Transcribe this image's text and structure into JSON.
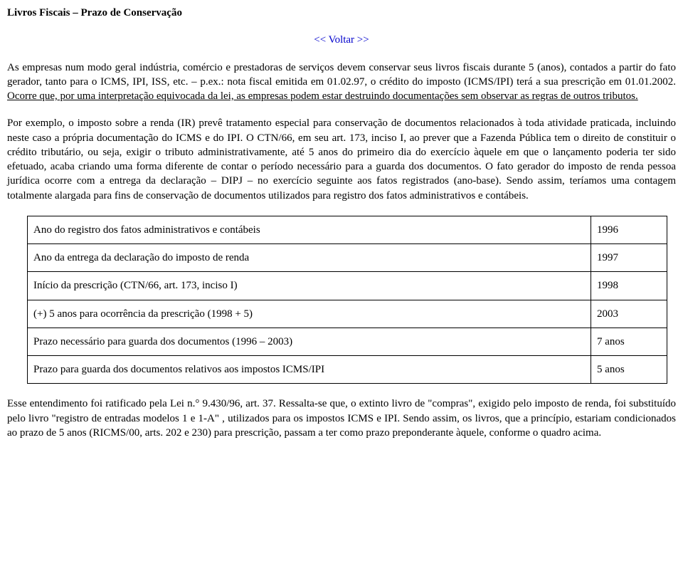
{
  "title": "Livros Fiscais – Prazo de Conservação",
  "back_link": "<< Voltar >>",
  "para1_a": "As empresas num modo geral indústria, comércio e prestadoras de serviços devem conservar seus livros fiscais durante 5 (anos), contados a partir do fato gerador, tanto para o ICMS, IPI, ISS, etc. – p.ex.: nota fiscal emitida em 01.02.97, o crédito do imposto (ICMS/IPI) terá a sua prescrição em 01.01.2002. ",
  "para1_b": "Ocorre que, por uma interpretação equivocada da lei, as empresas podem estar destruindo documentações sem observar as regras de outros tributos.",
  "para2": "Por exemplo, o imposto sobre a renda (IR) prevê tratamento especial para conservação de documentos relacionados à toda atividade praticada, incluindo neste caso a própria documentação do ICMS e do IPI. O CTN/66, em seu art. 173, inciso I, ao prever que a Fazenda Pública tem o direito de constituir o crédito tributário, ou seja, exigir o tributo administrativamente, até 5 anos do primeiro dia do exercício àquele em que o lançamento poderia ter sido efetuado, acaba criando uma forma diferente de contar o período necessário para a guarda dos documentos. O fato gerador do imposto de renda pessoa jurídica ocorre com a entrega da declaração – DIPJ – no exercício seguinte aos fatos registrados (ano-base). Sendo assim, teríamos uma contagem totalmente alargada para fins de conservação de documentos utilizados para registro dos fatos administrativos e contábeis.",
  "table": {
    "rows": [
      {
        "label": "Ano do registro dos fatos administrativos e contábeis",
        "value": "1996"
      },
      {
        "label": "Ano da entrega da declaração do imposto de renda",
        "value": "1997"
      },
      {
        "label": "Início da prescrição (CTN/66, art. 173, inciso I)",
        "value": "1998"
      },
      {
        "label": "(+) 5 anos para ocorrência da prescrição (1998 + 5)",
        "value": "2003"
      },
      {
        "label": "Prazo necessário para guarda dos documentos (1996 – 2003)",
        "value": "7 anos"
      },
      {
        "label": "Prazo para guarda dos documentos relativos aos impostos ICMS/IPI",
        "value": "5 anos"
      }
    ]
  },
  "para3": "Esse entendimento foi ratificado pela Lei n.° 9.430/96, art. 37. Ressalta-se que, o extinto livro de \"compras\", exigido pelo imposto de renda, foi substituído pelo livro \"registro de entradas modelos 1 e 1-A\" , utilizados para os impostos ICMS e IPI. Sendo assim, os livros, que a princípio, estariam condicionados ao prazo de 5 anos (RICMS/00, arts. 202 e 230) para prescrição, passam a ter como prazo preponderante àquele, conforme o quadro acima."
}
